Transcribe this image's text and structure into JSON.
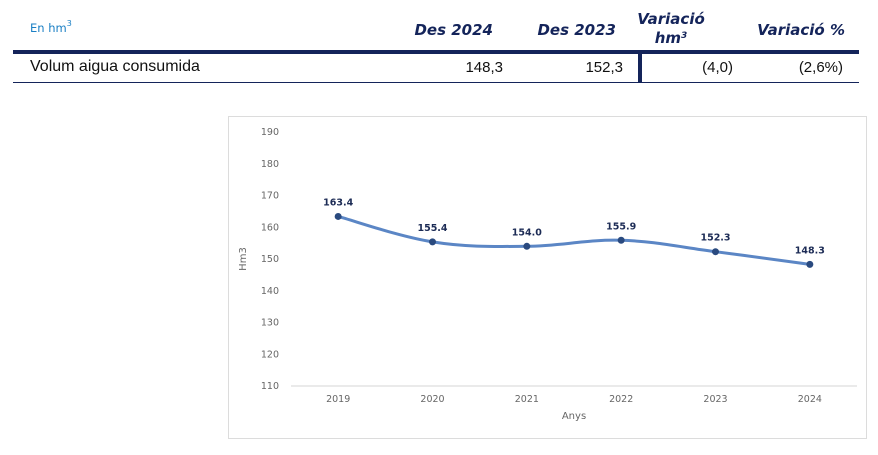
{
  "table": {
    "unit_label": "En hm",
    "unit_sup": "3",
    "headers": {
      "des2024": "Des 2024",
      "des2023": "Des 2023",
      "variacio_line1": "Variació",
      "variacio_line2": "hm",
      "variacio_sup": "3",
      "variacio_pct": "Variació %"
    },
    "rows": [
      {
        "label": "Volum aigua consumida",
        "des2024": "148,3",
        "des2023": "152,3",
        "variacio": "(4,0)",
        "variacio_pct": "(2,6%)"
      }
    ],
    "colors": {
      "header_text": "#14245a",
      "unit_text": "#1a7fc4",
      "rule": "#14245a"
    }
  },
  "chart_data": {
    "type": "line",
    "x": [
      "2019",
      "2020",
      "2021",
      "2022",
      "2023",
      "2024"
    ],
    "series": [
      {
        "values": [
          163.4,
          155.4,
          154.0,
          155.9,
          152.3,
          148.3
        ],
        "labels": [
          "163.4",
          "155.4",
          "154.0",
          "155.9",
          "152.3",
          "148.3"
        ]
      }
    ],
    "xlabel": "Anys",
    "ylabel": "Hm3",
    "ylim": [
      110,
      190
    ],
    "yticks": [
      110,
      120,
      130,
      140,
      150,
      160,
      170,
      180,
      190
    ],
    "grid": false,
    "smooth": true,
    "colors": {
      "line": "#5b86c5",
      "marker": "#2a4a7f",
      "label": "#1c2b55",
      "axis_text": "#666666"
    }
  }
}
